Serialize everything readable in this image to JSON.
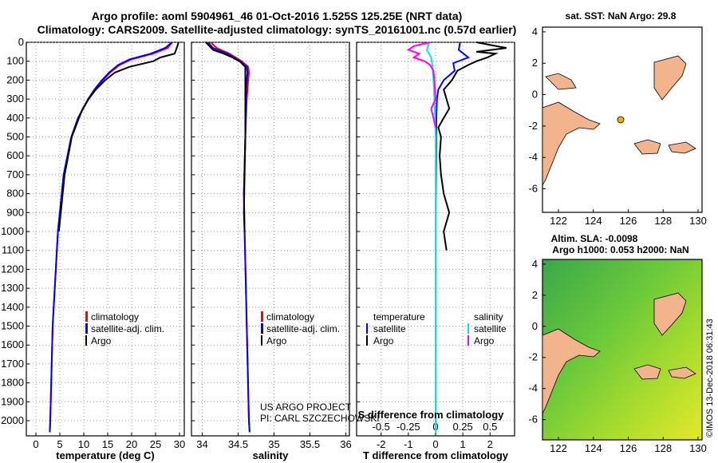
{
  "title_line1": "Argo profile: aoml 5904961_46 01-Oct-2016 1.525S 125.25E (NRT data)",
  "title_line2": "Climatology: CARS2009. Satellite-adjusted climatology: synTS_20161001.nc (0.57d earlier)",
  "depth_ticks": [
    "0",
    "100",
    "200",
    "300",
    "400",
    "500",
    "600",
    "700",
    "800",
    "900",
    "1000",
    "1100",
    "1200",
    "1300",
    "1400",
    "1500",
    "1600",
    "1700",
    "1800",
    "1900",
    "2000"
  ],
  "colors": {
    "climatology": "#ff0000",
    "satellite": "#0000ff",
    "argo": "#000000",
    "sal_satellite": "#00e5e5",
    "sal_argo": "#ff00ff",
    "land": "#f2b48c"
  },
  "legend": {
    "climatology": "climatology",
    "satellite_adj": "satellite-adj. clim.",
    "argo": "Argo"
  },
  "panel3_legend": {
    "temperature": "temperature",
    "salinity": "salinity",
    "satellite": "satellite",
    "argo": "Argo"
  },
  "pi_text": {
    "line1": "US ARGO PROJECT",
    "line2": "PI: CARL SZCZECHOWSKI"
  },
  "s_diff_label": "S difference from climatology",
  "sst_title": "sat. SST: NaN Argo: 29.8",
  "sla_title1": "Altim. SLA: -0.0098",
  "sla_title2": "Argo h1000: 0.053 h2000: NaN",
  "stamp": "©IMOS 13-Dec-2018 06:31:43",
  "map_lon_ticks": [
    "122",
    "124",
    "126",
    "128",
    "130"
  ],
  "map_lat_ticks": [
    "4",
    "2",
    "0",
    "-2",
    "-4",
    "-6"
  ],
  "chart_data": [
    {
      "type": "line",
      "xlabel": "temperature (deg C)",
      "ylabel": "",
      "xlim": [
        -2,
        31
      ],
      "ylim": [
        2080,
        0
      ],
      "x_ticks": [
        "0",
        "5",
        "10",
        "15",
        "20",
        "25",
        "30"
      ],
      "series": [
        {
          "name": "climatology",
          "depth": [
            0,
            30,
            60,
            90,
            120,
            160,
            200,
            250,
            300,
            400,
            500,
            700,
            1000,
            1500,
            2000,
            2060
          ],
          "values": [
            28.5,
            27.5,
            24.5,
            20,
            17.5,
            15.5,
            14,
            12.3,
            11,
            8.8,
            7.4,
            5.8,
            4.6,
            3.5,
            3.0,
            2.9
          ]
        },
        {
          "name": "satellite-adj. clim.",
          "depth": [
            0,
            30,
            60,
            90,
            120,
            160,
            200,
            250,
            300,
            400,
            500,
            700,
            1000,
            1500,
            2000,
            2060
          ],
          "values": [
            28.4,
            27,
            24,
            19.6,
            17.2,
            15.3,
            13.8,
            12.2,
            10.9,
            8.8,
            7.4,
            5.8,
            4.6,
            3.5,
            3.0,
            2.9
          ]
        },
        {
          "name": "Argo",
          "depth": [
            0,
            25,
            45,
            60,
            80,
            100,
            130,
            160,
            200,
            250,
            300,
            350,
            400,
            500,
            700,
            900,
            1000
          ],
          "values": [
            29.8,
            29.5,
            29.2,
            29,
            26,
            24.5,
            19.5,
            16.5,
            14.5,
            12.5,
            11,
            9.8,
            9,
            7.5,
            6,
            5.2,
            4.8
          ]
        }
      ]
    },
    {
      "type": "line",
      "xlabel": "salinity",
      "ylabel": "",
      "xlim": [
        33.85,
        36.05
      ],
      "ylim": [
        2080,
        0
      ],
      "x_ticks": [
        "34",
        "34.5",
        "35",
        "35.5",
        "36"
      ],
      "series": [
        {
          "name": "climatology",
          "depth": [
            0,
            30,
            60,
            100,
            130,
            160,
            200,
            300,
            500,
            800,
            1000,
            1500,
            2000,
            2060
          ],
          "values": [
            34.12,
            34.2,
            34.38,
            34.55,
            34.64,
            34.65,
            34.64,
            34.62,
            34.6,
            34.58,
            34.59,
            34.62,
            34.65,
            34.66
          ]
        },
        {
          "name": "satellite-adj. clim.",
          "depth": [
            0,
            30,
            60,
            100,
            130,
            160,
            200,
            300,
            500,
            800,
            1000,
            1500,
            2000,
            2060
          ],
          "values": [
            34.08,
            34.15,
            34.35,
            34.53,
            34.62,
            34.63,
            34.62,
            34.61,
            34.6,
            34.58,
            34.59,
            34.62,
            34.65,
            34.66
          ]
        },
        {
          "name": "Argo",
          "depth": [
            0,
            20,
            40,
            60,
            80,
            100,
            130,
            200,
            300,
            500,
            700,
            900,
            1000
          ],
          "values": [
            34.05,
            34.1,
            34.15,
            34.3,
            34.42,
            34.52,
            34.6,
            34.6,
            34.6,
            34.6,
            34.59,
            34.58,
            34.59
          ]
        }
      ]
    },
    {
      "type": "line",
      "xlabel": "T difference from climatology",
      "ylabel": "",
      "xlim": [
        -2.9,
        2.9
      ],
      "ylim": [
        2080,
        0
      ],
      "x_ticks": [
        "-2",
        "-1",
        "0",
        "1",
        "2"
      ],
      "top_x_label": "S difference from climatology",
      "top_x_ticks": [
        "-0.5",
        "-0.25",
        "0",
        "0.25",
        "0.5"
      ],
      "series": [
        {
          "name": "temperature satellite",
          "axis": "T",
          "depth": [
            0,
            40,
            80,
            110,
            150,
            200,
            250,
            300,
            400,
            600,
            800,
            1000,
            1500,
            2000,
            2060
          ],
          "values": [
            0.9,
            0.85,
            1.2,
            0.65,
            0.7,
            0.3,
            0.1,
            0.05,
            0.03,
            0.02,
            0.01,
            0,
            0,
            0,
            0
          ]
        },
        {
          "name": "temperature Argo",
          "axis": "T",
          "depth": [
            0,
            30,
            50,
            60,
            80,
            100,
            120,
            150,
            200,
            250,
            300,
            350,
            400,
            450,
            500,
            600,
            700,
            800,
            900,
            1000,
            1100
          ],
          "values": [
            1.5,
            2.6,
            1.5,
            2.2,
            1.9,
            1.5,
            1.2,
            0.8,
            0.6,
            0.3,
            0.4,
            0.5,
            0.3,
            0.1,
            0.2,
            0.15,
            0.2,
            0.3,
            0.5,
            0.3,
            0.4
          ]
        },
        {
          "name": "salinity satellite",
          "axis": "S",
          "depth": [
            0,
            40,
            80,
            120,
            200,
            300,
            500,
            800,
            1000,
            1500,
            2000,
            2060
          ],
          "values": [
            -0.06,
            -0.08,
            -0.04,
            -0.03,
            -0.02,
            -0.01,
            0,
            0,
            0,
            0,
            0,
            0
          ]
        },
        {
          "name": "salinity Argo",
          "axis": "S",
          "depth": [
            0,
            20,
            40,
            60,
            80,
            100,
            120,
            150,
            200,
            300,
            350,
            400,
            450
          ],
          "values": [
            -0.05,
            -0.2,
            -0.25,
            -0.15,
            -0.2,
            -0.1,
            -0.05,
            -0.02,
            -0.01,
            0,
            -0.04,
            -0.02,
            0
          ]
        }
      ]
    }
  ]
}
